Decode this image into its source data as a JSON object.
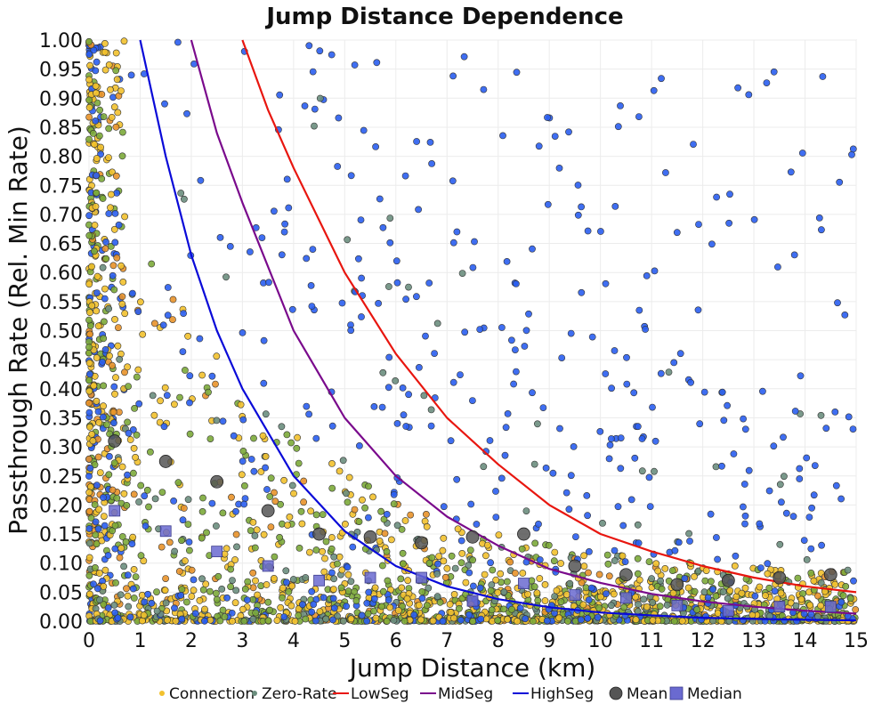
{
  "chart_data": {
    "type": "scatter",
    "title": "Jump Distance Dependence",
    "xlabel": "Jump Distance (km)",
    "ylabel": "Passthrough Rate (Rel. Min Rate)",
    "xlim": [
      0,
      15
    ],
    "ylim": [
      0,
      1
    ],
    "x_ticks": [
      0,
      1,
      2,
      3,
      4,
      5,
      6,
      7,
      8,
      9,
      10,
      11,
      12,
      13,
      14,
      15
    ],
    "y_ticks": [
      0,
      0.05,
      0.1,
      0.15,
      0.2,
      0.25,
      0.3,
      0.35,
      0.4,
      0.45,
      0.5,
      0.55,
      0.6,
      0.65,
      0.7,
      0.75,
      0.8,
      0.85,
      0.9,
      0.95,
      1.0
    ],
    "grid": true,
    "legend_placement": "bottom",
    "legend": [
      {
        "label": "Connection",
        "type": "point",
        "color": "#f2c12e"
      },
      {
        "label": "Zero-Rate",
        "type": "point",
        "color": "#6b8e7e"
      },
      {
        "label": "LowSeg",
        "type": "line",
        "color": "#e8160f"
      },
      {
        "label": "MidSeg",
        "type": "line",
        "color": "#7a0a8c"
      },
      {
        "label": "HighSeg",
        "type": "line",
        "color": "#0a0ad8"
      },
      {
        "label": "Mean",
        "type": "circle",
        "color": "#555555"
      },
      {
        "label": "Median",
        "type": "square",
        "color": "#6a6ad0"
      }
    ],
    "curves": [
      {
        "name": "LowSeg",
        "color": "#e8160f",
        "x": [
          3.0,
          3.5,
          4,
          5,
          6,
          7,
          8,
          9,
          10,
          11,
          12,
          13,
          14,
          15
        ],
        "y": [
          1.0,
          0.88,
          0.78,
          0.6,
          0.46,
          0.35,
          0.27,
          0.2,
          0.15,
          0.12,
          0.095,
          0.075,
          0.06,
          0.05
        ]
      },
      {
        "name": "MidSeg",
        "color": "#7a0a8c",
        "x": [
          2.0,
          2.5,
          3,
          4,
          5,
          6,
          7,
          8,
          9,
          10,
          11,
          12,
          13,
          14,
          15
        ],
        "y": [
          1.0,
          0.84,
          0.72,
          0.5,
          0.35,
          0.25,
          0.18,
          0.13,
          0.09,
          0.066,
          0.047,
          0.034,
          0.025,
          0.018,
          0.013
        ]
      },
      {
        "name": "HighSeg",
        "color": "#0a0ad8",
        "x": [
          1.0,
          1.5,
          2,
          2.5,
          3,
          4,
          5,
          6,
          7,
          8,
          9,
          10,
          11,
          12,
          13,
          14,
          15
        ],
        "y": [
          1.0,
          0.8,
          0.63,
          0.5,
          0.4,
          0.25,
          0.155,
          0.095,
          0.06,
          0.038,
          0.024,
          0.015,
          0.01,
          0.006,
          0.004,
          0.0025,
          0.0015
        ]
      }
    ],
    "mean": {
      "x": [
        0.5,
        1.5,
        2.5,
        3.5,
        4.5,
        5.5,
        6.5,
        7.5,
        8.5,
        9.5,
        10.5,
        11.5,
        12.5,
        13.5,
        14.5
      ],
      "y": [
        0.31,
        0.275,
        0.24,
        0.19,
        0.15,
        0.145,
        0.135,
        0.145,
        0.15,
        0.095,
        0.08,
        0.063,
        0.07,
        0.075,
        0.08
      ]
    },
    "median": {
      "x": [
        0.5,
        1.5,
        2.5,
        3.5,
        4.5,
        5.5,
        6.5,
        7.5,
        8.5,
        9.5,
        10.5,
        11.5,
        12.5,
        13.5,
        14.5
      ],
      "y": [
        0.19,
        0.155,
        0.12,
        0.095,
        0.07,
        0.075,
        0.075,
        0.035,
        0.065,
        0.045,
        0.04,
        0.027,
        0.018,
        0.025,
        0.025
      ]
    },
    "scatter_series": [
      {
        "name": "Connection",
        "color": "#f2c12e"
      },
      {
        "name": "Zero-Rate",
        "color": "#6b8e7e"
      },
      {
        "name": "HighSeg points",
        "color": "#2a5ef0"
      },
      {
        "name": "MidSeg points",
        "color": "#7caa3a"
      },
      {
        "name": "LowSeg points",
        "color": "#e8922a"
      }
    ]
  }
}
